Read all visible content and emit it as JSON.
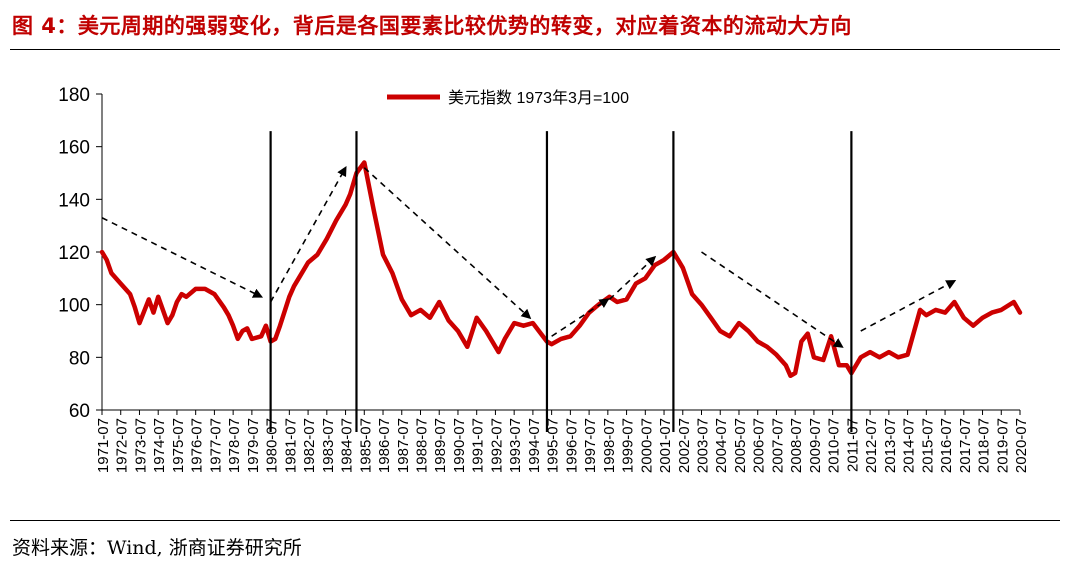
{
  "figure": {
    "title": "图 4：美元周期的强弱变化，背后是各国要素比较优势的转变，对应着资本的流动大方向",
    "source": "资料来源：Wind, 浙商证券研究所"
  },
  "colors": {
    "title": "#c00000",
    "series": "#cc0000",
    "axis": "#000000",
    "annotation": "#000000"
  },
  "chart_data": {
    "type": "line",
    "title": "",
    "xlabel": "",
    "ylabel": "",
    "ylim": [
      60,
      180
    ],
    "yticks": [
      60,
      80,
      100,
      120,
      140,
      160,
      180
    ],
    "grid": false,
    "legend": "top-center",
    "x_tick_labels": [
      "1971-07",
      "1972-07",
      "1973-07",
      "1974-07",
      "1975-07",
      "1976-07",
      "1977-07",
      "1978-07",
      "1979-07",
      "1980-07",
      "1981-07",
      "1982-07",
      "1983-07",
      "1984-07",
      "1985-07",
      "1986-07",
      "1987-07",
      "1988-07",
      "1989-07",
      "1990-07",
      "1991-07",
      "1992-07",
      "1993-07",
      "1994-07",
      "1995-07",
      "1996-07",
      "1997-07",
      "1998-07",
      "1999-07",
      "2000-07",
      "2001-07",
      "2002-07",
      "2003-07",
      "2004-07",
      "2005-07",
      "2006-07",
      "2007-07",
      "2008-07",
      "2009-07",
      "2010-07",
      "2011-07",
      "2012-07",
      "2013-07",
      "2014-07",
      "2015-07",
      "2016-07",
      "2017-07",
      "2018-07",
      "2019-07",
      "2020-07"
    ],
    "series": [
      {
        "name": "美元指数 1973年3月=100",
        "x": [
          "1971-07",
          "1971-10",
          "1972-01",
          "1972-07",
          "1973-01",
          "1973-04",
          "1973-07",
          "1974-01",
          "1974-04",
          "1974-07",
          "1975-01",
          "1975-04",
          "1975-07",
          "1975-10",
          "1976-01",
          "1976-07",
          "1977-01",
          "1977-07",
          "1978-01",
          "1978-04",
          "1978-07",
          "1978-10",
          "1979-01",
          "1979-04",
          "1979-07",
          "1980-01",
          "1980-04",
          "1980-07",
          "1980-10",
          "1981-01",
          "1981-07",
          "1981-10",
          "1982-01",
          "1982-07",
          "1983-01",
          "1983-07",
          "1984-01",
          "1984-07",
          "1984-10",
          "1985-02",
          "1985-07",
          "1986-01",
          "1986-07",
          "1987-01",
          "1987-07",
          "1988-01",
          "1988-07",
          "1989-01",
          "1989-07",
          "1990-01",
          "1990-07",
          "1991-01",
          "1991-07",
          "1992-01",
          "1992-09",
          "1993-01",
          "1993-07",
          "1994-01",
          "1994-07",
          "1995-04",
          "1995-07",
          "1996-01",
          "1996-07",
          "1997-01",
          "1997-07",
          "1998-01",
          "1998-08",
          "1999-01",
          "1999-07",
          "2000-01",
          "2000-07",
          "2001-01",
          "2001-07",
          "2002-01",
          "2002-07",
          "2003-01",
          "2003-07",
          "2004-01",
          "2004-07",
          "2005-01",
          "2005-07",
          "2006-01",
          "2006-07",
          "2007-01",
          "2007-07",
          "2008-01",
          "2008-04",
          "2008-07",
          "2008-11",
          "2009-03",
          "2009-07",
          "2010-01",
          "2010-06",
          "2010-11",
          "2011-04",
          "2011-07",
          "2012-01",
          "2012-07",
          "2013-01",
          "2013-07",
          "2014-01",
          "2014-07",
          "2015-03",
          "2015-07",
          "2016-01",
          "2016-07",
          "2017-01",
          "2017-07",
          "2018-01",
          "2018-07",
          "2019-01",
          "2019-07",
          "2020-03",
          "2020-07"
        ],
        "values": [
          120,
          117,
          112,
          108,
          104,
          99,
          93,
          102,
          97,
          103,
          93,
          96,
          101,
          104,
          103,
          106,
          106,
          104,
          99,
          96,
          92,
          87,
          90,
          91,
          87,
          88,
          92,
          86,
          87,
          92,
          103,
          107,
          110,
          116,
          119,
          125,
          132,
          138,
          142,
          150,
          154,
          136,
          119,
          112,
          102,
          96,
          98,
          95,
          101,
          94,
          90,
          84,
          95,
          90,
          82,
          87,
          93,
          92,
          93,
          86,
          85,
          87,
          88,
          92,
          97,
          100,
          103,
          101,
          102,
          108,
          110,
          115,
          117,
          120,
          114,
          104,
          100,
          95,
          90,
          88,
          93,
          90,
          86,
          84,
          81,
          77,
          73,
          74,
          86,
          89,
          80,
          79,
          88,
          77,
          77,
          74,
          80,
          82,
          80,
          82,
          80,
          81,
          98,
          96,
          98,
          97,
          101,
          95,
          92,
          95,
          97,
          98,
          101,
          97
        ]
      }
    ],
    "events": [
      "1980-07",
      "1985-02",
      "1995-04",
      "2002-01",
      "2011-07"
    ],
    "trend_arrows": [
      {
        "from": [
          "1971-07",
          133
        ],
        "to": [
          "1980-01",
          103
        ]
      },
      {
        "from": [
          "1980-07",
          101
        ],
        "to": [
          "1984-07",
          152
        ]
      },
      {
        "from": [
          "1985-07",
          152
        ],
        "to": [
          "1994-05",
          95
        ]
      },
      {
        "from": [
          "1995-07",
          88
        ],
        "to": [
          "1998-07",
          102
        ]
      },
      {
        "from": [
          "1998-08",
          102
        ],
        "to": [
          "2001-01",
          118
        ]
      },
      {
        "from": [
          "2003-07",
          120
        ],
        "to": [
          "2011-01",
          84
        ]
      },
      {
        "from": [
          "2012-01",
          90
        ],
        "to": [
          "2017-01",
          109
        ]
      }
    ]
  }
}
